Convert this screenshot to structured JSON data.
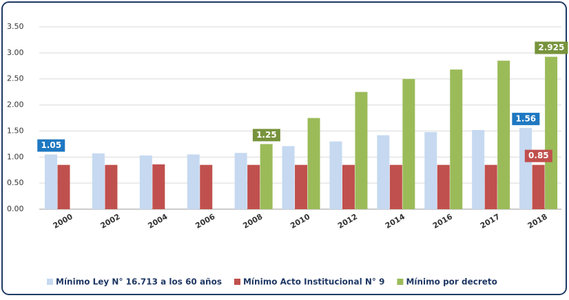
{
  "chart_data": {
    "type": "bar",
    "categories": [
      "2000",
      "2002",
      "2004",
      "2006",
      "2008",
      "2010",
      "2012",
      "2014",
      "2016",
      "2017",
      "2018"
    ],
    "series": [
      {
        "name": "Mínimo Ley N° 16.713 a los 60 años",
        "color": "#c6d9f1",
        "label_color": "#1f78c1",
        "values": [
          1.05,
          1.07,
          1.03,
          1.05,
          1.08,
          1.21,
          1.3,
          1.42,
          1.48,
          1.52,
          1.56
        ],
        "value_labels": [
          "1.05",
          null,
          null,
          null,
          null,
          null,
          null,
          null,
          null,
          null,
          "1.56"
        ]
      },
      {
        "name": "Mínimo Acto Institucional N°  9",
        "color": "#c0504d",
        "label_color": "#c0504d",
        "values": [
          0.85,
          0.85,
          0.86,
          0.85,
          0.85,
          0.85,
          0.85,
          0.85,
          0.85,
          0.85,
          0.85
        ],
        "value_labels": [
          null,
          null,
          null,
          null,
          null,
          null,
          null,
          null,
          null,
          null,
          "0.85"
        ]
      },
      {
        "name": "Mínimo por decreto",
        "color": "#9bbb59",
        "label_color": "#77933c",
        "values": [
          null,
          null,
          null,
          null,
          1.25,
          1.75,
          2.25,
          2.5,
          2.68,
          2.85,
          2.925
        ],
        "value_labels": [
          null,
          null,
          null,
          null,
          "1.25",
          null,
          null,
          null,
          null,
          null,
          "2.925"
        ]
      }
    ],
    "ylim": [
      0,
      3.5
    ],
    "yticks": [
      {
        "value": 0,
        "label": "0.00"
      },
      {
        "value": 0.5,
        "label": "0.50"
      },
      {
        "value": 1,
        "label": "1.00"
      },
      {
        "value": 1.5,
        "label": "1.50"
      },
      {
        "value": 2,
        "label": "2.00"
      },
      {
        "value": 2.5,
        "label": "2.50"
      },
      {
        "value": 3,
        "label": "3.00"
      },
      {
        "value": 3.5,
        "label": "3.50"
      }
    ],
    "grid": true,
    "legend": "bottom"
  }
}
